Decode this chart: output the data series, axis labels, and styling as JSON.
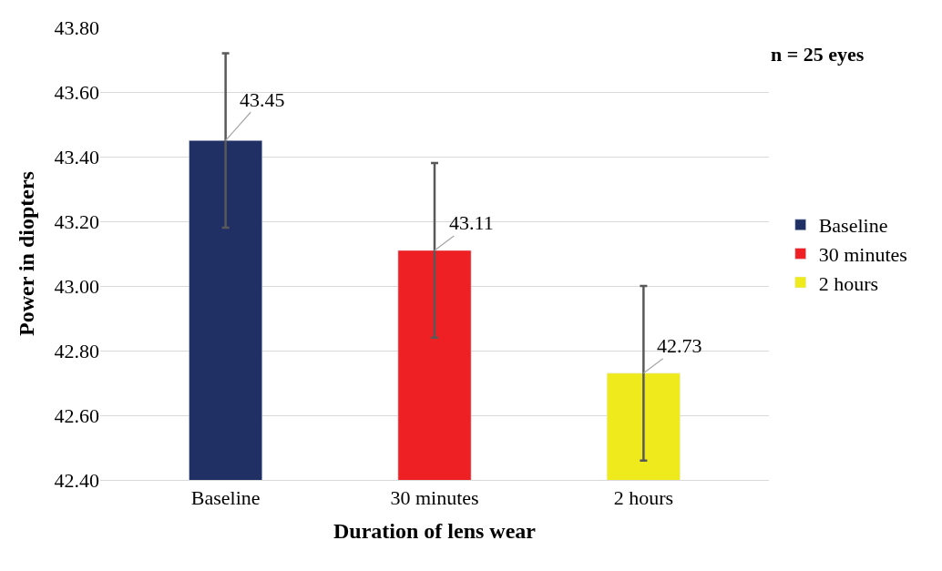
{
  "chart_data": {
    "type": "bar",
    "xlabel": "Duration of lens wear",
    "ylabel": "Power in diopters",
    "categories": [
      "Baseline",
      "30 minutes",
      "2 hours"
    ],
    "series": [
      {
        "name": "Baseline",
        "color": "#203064",
        "values": [
          43.45,
          null,
          null
        ],
        "errors": [
          0.27,
          null,
          null
        ]
      },
      {
        "name": "30 minutes",
        "color": "#ee2024",
        "values": [
          null,
          43.11,
          null
        ],
        "errors": [
          null,
          0.27,
          null
        ]
      },
      {
        "name": "2 hours",
        "color": "#eeea1c",
        "values": [
          null,
          null,
          42.73
        ],
        "errors": [
          null,
          null,
          0.27
        ]
      }
    ],
    "ylim": [
      42.4,
      43.8
    ],
    "yticks": [
      {
        "value": 42.4,
        "label": "42.40"
      },
      {
        "value": 42.6,
        "label": "42.60"
      },
      {
        "value": 42.8,
        "label": "42.80"
      },
      {
        "value": 43.0,
        "label": "43.00"
      },
      {
        "value": 43.2,
        "label": "43.20"
      },
      {
        "value": 43.4,
        "label": "43.40"
      },
      {
        "value": 43.6,
        "label": "43.60"
      },
      {
        "value": 43.8,
        "label": "43.80"
      }
    ],
    "grid": "y",
    "legend": "right",
    "data_labels": true,
    "annotations": [
      "n = 25 eyes"
    ]
  }
}
